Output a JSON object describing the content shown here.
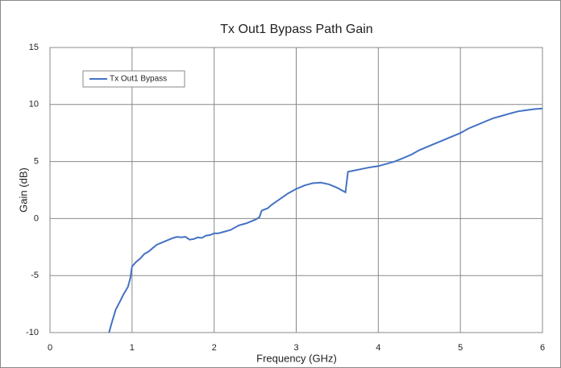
{
  "chart_data": {
    "type": "line",
    "title": "Tx Out1 Bypass Path Gain",
    "x_label": "Frequency (GHz)",
    "y_label": "Gain (dB)",
    "xlim": [
      0,
      6
    ],
    "xticks": [
      0,
      1,
      2,
      3,
      4,
      5,
      6
    ],
    "ylim": [
      -10,
      15
    ],
    "yticks": [
      -10,
      -5,
      0,
      5,
      10,
      15
    ],
    "grid": true,
    "legend": "upper left",
    "x": [
      0.72,
      0.75,
      0.8,
      0.85,
      0.9,
      0.95,
      0.98,
      1.0,
      1.05,
      1.1,
      1.15,
      1.2,
      1.25,
      1.3,
      1.4,
      1.5,
      1.55,
      1.6,
      1.65,
      1.7,
      1.75,
      1.8,
      1.85,
      1.9,
      1.95,
      2.0,
      2.05,
      2.1,
      2.2,
      2.3,
      2.35,
      2.4,
      2.5,
      2.55,
      2.58,
      2.65,
      2.7,
      2.8,
      2.9,
      3.0,
      3.1,
      3.2,
      3.3,
      3.4,
      3.5,
      3.6,
      3.63,
      3.7,
      3.8,
      3.9,
      4.0,
      4.1,
      4.2,
      4.3,
      4.4,
      4.5,
      4.6,
      4.7,
      4.8,
      4.9,
      5.0,
      5.1,
      5.2,
      5.3,
      5.4,
      5.5,
      5.6,
      5.7,
      5.8,
      5.9,
      6.0
    ],
    "series": [
      {
        "name": "Tx Out1 Bypass",
        "color": "#4472c4",
        "values": [
          -10,
          -9.2,
          -8,
          -7.3,
          -6.6,
          -6.0,
          -5.2,
          -4.2,
          -3.8,
          -3.5,
          -3.1,
          -2.9,
          -2.6,
          -2.3,
          -2.0,
          -1.7,
          -1.6,
          -1.65,
          -1.6,
          -1.85,
          -1.8,
          -1.65,
          -1.7,
          -1.5,
          -1.45,
          -1.3,
          -1.3,
          -1.2,
          -1.0,
          -0.6,
          -0.5,
          -0.4,
          -0.1,
          0.1,
          0.7,
          0.9,
          1.2,
          1.7,
          2.2,
          2.6,
          2.9,
          3.1,
          3.15,
          3.0,
          2.7,
          2.3,
          4.1,
          4.2,
          4.35,
          4.5,
          4.6,
          4.8,
          5.0,
          5.3,
          5.6,
          6.0,
          6.3,
          6.6,
          6.9,
          7.2,
          7.5,
          7.9,
          8.2,
          8.5,
          8.8,
          9.0,
          9.2,
          9.4,
          9.5,
          9.6,
          9.65
        ]
      }
    ]
  }
}
